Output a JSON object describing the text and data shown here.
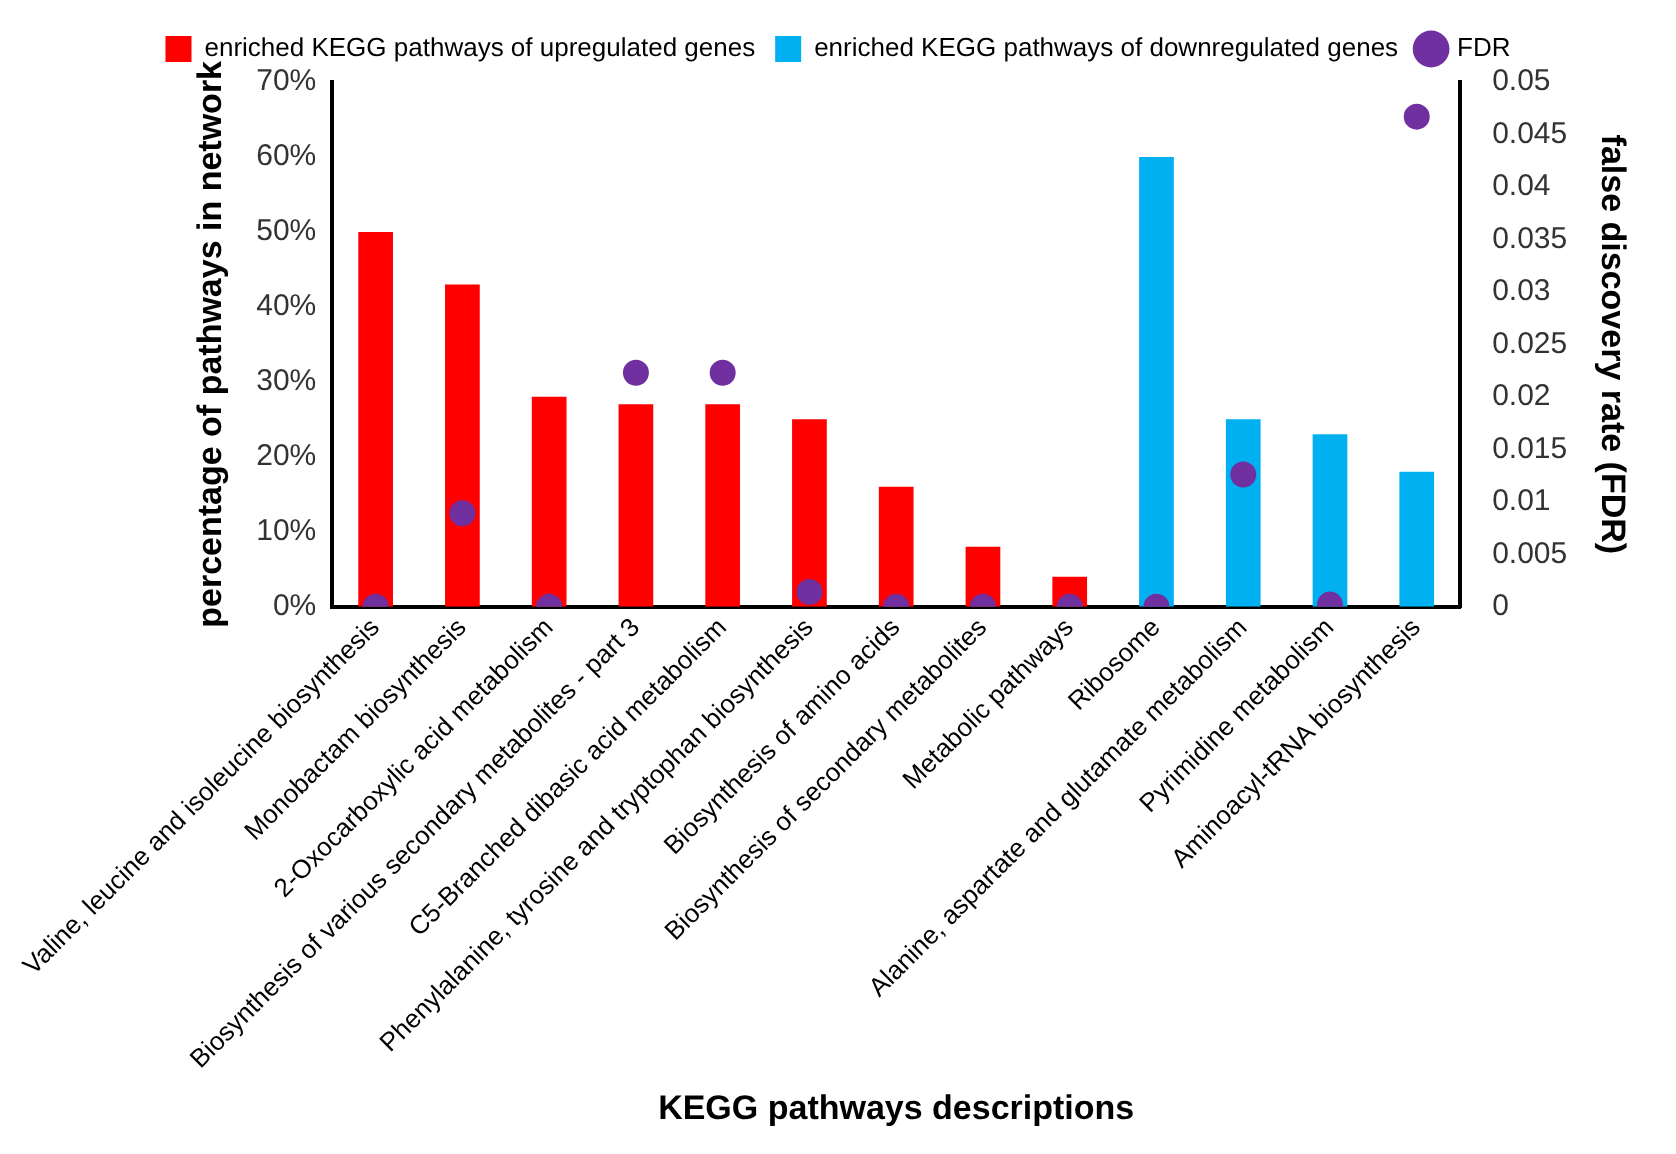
{
  "chart_data": {
    "type": "bar",
    "xlabel": "KEGG pathways descriptions",
    "ylabel": "percentage of pathways in network",
    "y2label": "false discovery rate (FDR)",
    "categories": [
      "Valine, leucine and isoleucine biosynthesis",
      "Monobactam biosynthesis",
      "2-Oxocarboxylic acid metabolism",
      "Biosynthesis of various secondary metabolites - part 3",
      "C5-Branched dibasic acid metabolism",
      "Phenylalanine, tyrosine and tryptophan biosynthesis",
      "Biosynthesis of amino acids",
      "Biosynthesis of secondary metabolites",
      "Metabolic pathways",
      "Ribosome",
      "Alanine, aspartate and glutamate metabolism",
      "Pyrimidine metabolism",
      "Aminoacyl-tRNA biosynthesis"
    ],
    "series": [
      {
        "name": "enriched KEGG pathways of upregulated genes",
        "color": "#ff0000",
        "values": [
          50,
          43,
          28,
          27,
          27,
          25,
          16,
          8,
          4,
          null,
          null,
          null,
          null
        ]
      },
      {
        "name": "enriched KEGG pathways of downregulated genes",
        "color": "#00b0f0",
        "values": [
          null,
          null,
          null,
          null,
          null,
          null,
          null,
          null,
          null,
          60,
          25,
          23,
          18
        ]
      },
      {
        "name": "FDR",
        "type": "scatter",
        "axis": "y2",
        "color": "#7030a0",
        "values": [
          0,
          0.0089,
          0,
          0.0223,
          0.0223,
          0.0014,
          0,
          0,
          0,
          0,
          0.0126,
          0.0002,
          0.0467
        ]
      }
    ],
    "ylim": [
      0,
      70
    ],
    "yticks": [
      {
        "value": 0,
        "label": "0%"
      },
      {
        "value": 10,
        "label": "10%"
      },
      {
        "value": 20,
        "label": "20%"
      },
      {
        "value": 30,
        "label": "30%"
      },
      {
        "value": 40,
        "label": "40%"
      },
      {
        "value": 50,
        "label": "50%"
      },
      {
        "value": 60,
        "label": "60%"
      },
      {
        "value": 70,
        "label": "70%"
      }
    ],
    "y2lim": [
      0,
      0.05
    ],
    "y2ticks": [
      0,
      0.005,
      0.01,
      0.015,
      0.02,
      0.025,
      0.03,
      0.035,
      0.04,
      0.045,
      0.05
    ],
    "grid": false,
    "legend": "top",
    "marker": "circle"
  }
}
